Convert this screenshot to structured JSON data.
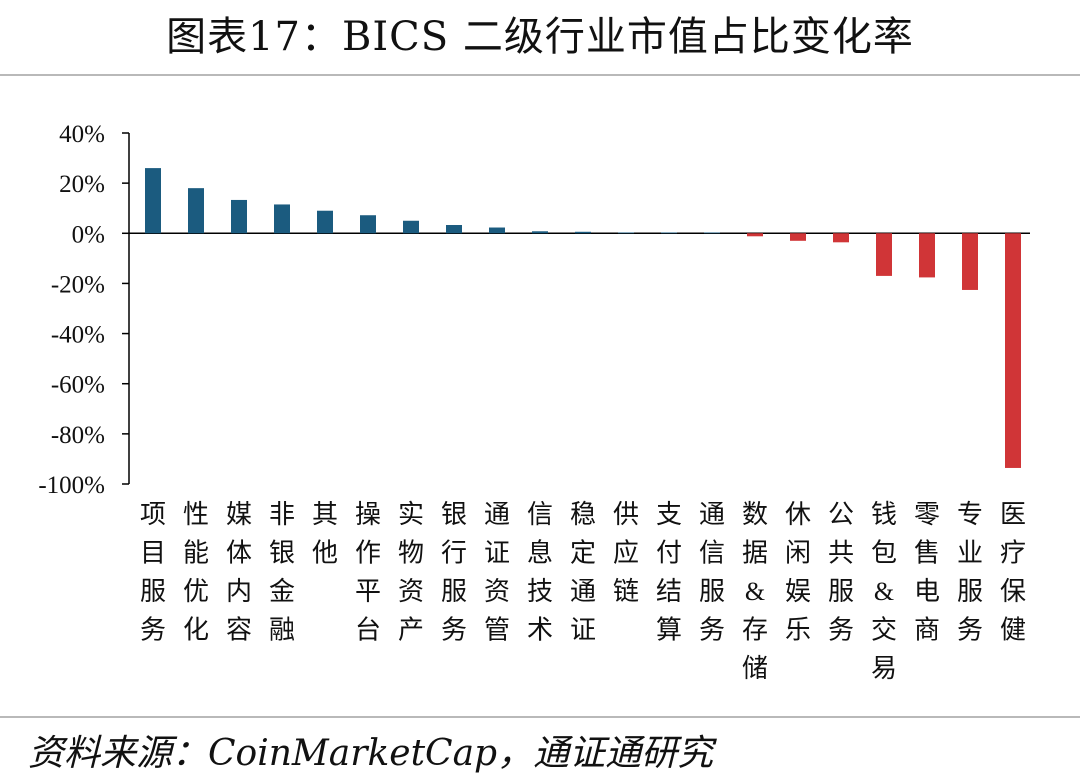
{
  "title": "图表17：BICS 二级行业市值占比变化率",
  "source": "资料来源：CoinMarketCap，通证通研究",
  "colors": {
    "positive": "#1b5b7f",
    "negative": "#d03537",
    "axis": "#000000"
  },
  "chart_data": {
    "type": "bar",
    "title": "图表17：BICS 二级行业市值占比变化率",
    "xlabel": "",
    "ylabel": "",
    "ylim": [
      -100,
      40
    ],
    "yticks": [
      "40%",
      "20%",
      "0%",
      "-20%",
      "-40%",
      "-60%",
      "-80%",
      "-100%"
    ],
    "ytick_values": [
      40,
      20,
      0,
      -20,
      -40,
      -60,
      -80,
      -100
    ],
    "grid": false,
    "legend": "none",
    "categories": [
      "项目服务",
      "性能优化",
      "媒体内容",
      "非银金融",
      "其他",
      "操作平台",
      "实物资产",
      "银行服务",
      "通证资管",
      "信息技术",
      "稳定通证",
      "供应链",
      "支付结算",
      "通信服务",
      "数据&存储",
      "休闲娱乐",
      "公共服务",
      "钱包&交易",
      "零售电商",
      "专业服务",
      "医疗保健"
    ],
    "values": [
      26,
      18,
      13.3,
      11.5,
      9,
      7.2,
      5,
      3.3,
      2.3,
      0.8,
      0.6,
      0.2,
      0.1,
      0.1,
      -1.2,
      -3,
      -3.6,
      -17,
      -17.6,
      -22.6,
      -93.6
    ]
  }
}
